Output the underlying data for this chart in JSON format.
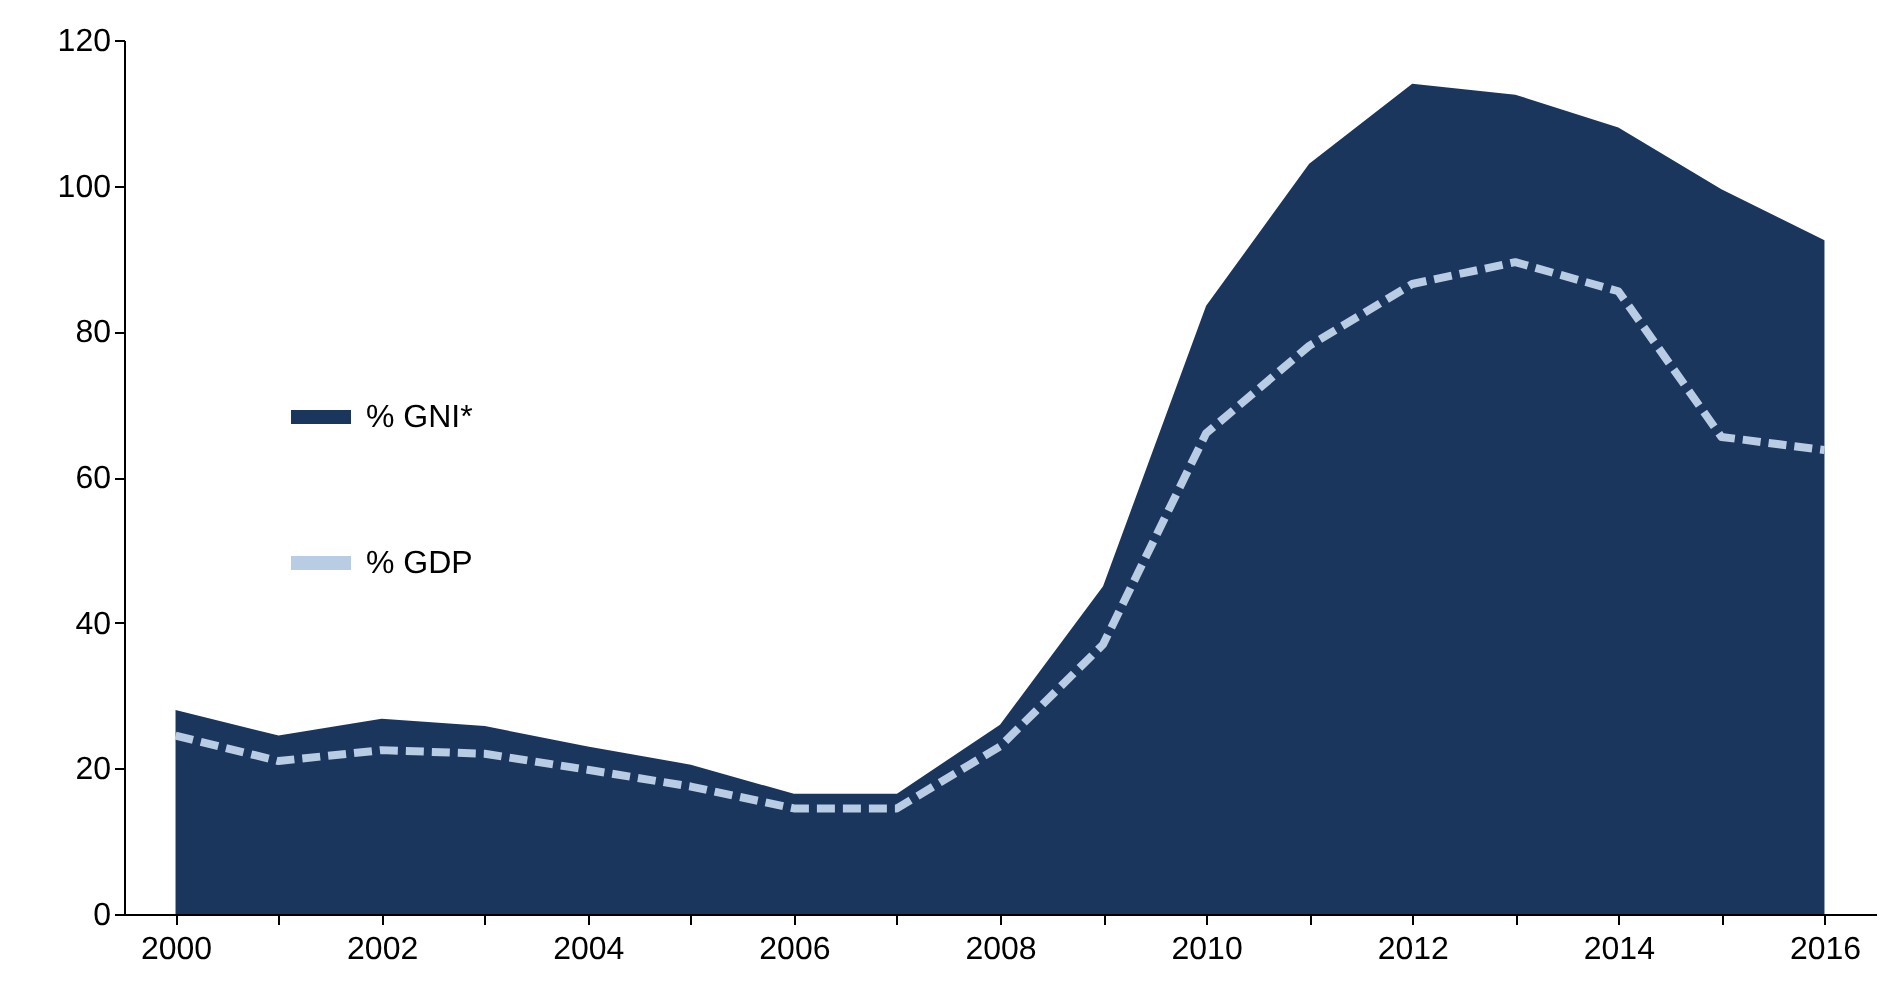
{
  "chart_data": {
    "type": "area",
    "x": [
      2000,
      2001,
      2002,
      2003,
      2004,
      2005,
      2006,
      2007,
      2008,
      2009,
      2010,
      2011,
      2012,
      2013,
      2014,
      2015,
      2016
    ],
    "series": [
      {
        "name": "% GNI*",
        "color": "#1b365d",
        "values": [
          28,
          24.5,
          26.8,
          25.8,
          23,
          20.5,
          16.5,
          16.5,
          26,
          45,
          83.5,
          103,
          114,
          112.5,
          108,
          99.5,
          92.5
        ]
      },
      {
        "name": "% GDP",
        "type": "line",
        "color": "#b8cce4",
        "line_style": "dashed",
        "values": [
          24.5,
          21,
          22.5,
          22,
          19.8,
          17.5,
          14.5,
          14.5,
          23,
          37,
          66,
          78,
          86.5,
          89.5,
          85.5,
          65.5,
          63.7
        ]
      }
    ],
    "xlim": [
      1999.5,
      2016.5
    ],
    "xticks": [
      2000,
      {
        "value": 2001,
        "label": null
      },
      2002,
      {
        "value": 2003,
        "label": null
      },
      2004,
      {
        "value": 2005,
        "label": null
      },
      2006,
      {
        "value": 2007,
        "label": null
      },
      2008,
      {
        "value": 2009,
        "label": null
      },
      2010,
      {
        "value": 2011,
        "label": null
      },
      2012,
      {
        "value": 2013,
        "label": null
      },
      2014,
      {
        "value": 2015,
        "label": null
      },
      2016
    ],
    "ylim": [
      0,
      120
    ],
    "yticks": [
      0,
      20,
      40,
      60,
      80,
      100,
      120
    ],
    "grid": false,
    "legend": "left"
  }
}
